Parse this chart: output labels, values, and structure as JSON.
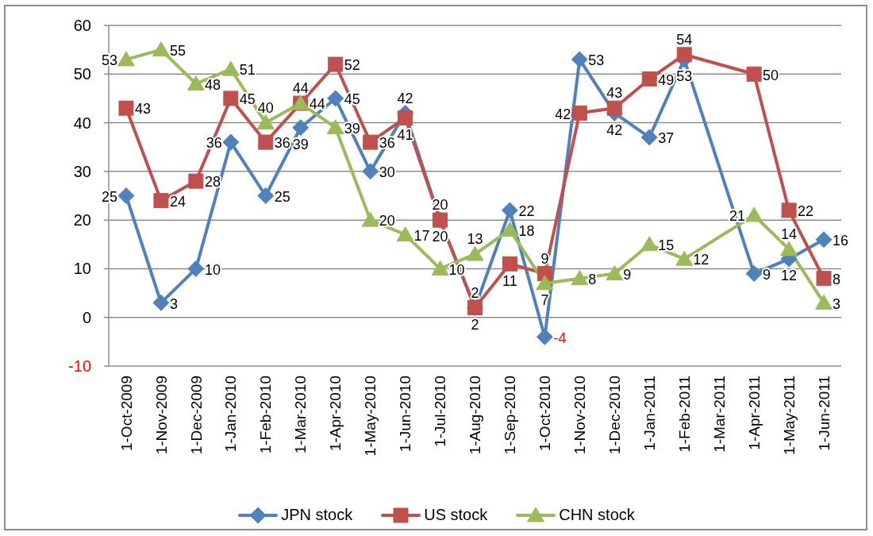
{
  "chart_data": {
    "type": "line",
    "categories": [
      "1-Oct-2009",
      "1-Nov-2009",
      "1-Dec-2009",
      "1-Jan-2010",
      "1-Feb-2010",
      "1-Mar-2010",
      "1-Apr-2010",
      "1-May-2010",
      "1-Jun-2010",
      "1-Jul-2010",
      "1-Aug-2010",
      "1-Sep-2010",
      "1-Oct-2010",
      "1-Nov-2010",
      "1-Dec-2010",
      "1-Jan-2011",
      "1-Feb-2011",
      "1-Mar-2011",
      "1-Apr-2011",
      "1-May-2011",
      "1-Jun-2011"
    ],
    "series": [
      {
        "name": "JPN stock",
        "color": "#4f81bd",
        "marker": "diamond",
        "values": [
          25,
          3,
          10,
          36,
          25,
          39,
          45,
          30,
          42,
          20,
          2,
          22,
          -4,
          53,
          42,
          37,
          53,
          null,
          9,
          12,
          16
        ]
      },
      {
        "name": "US stock",
        "color": "#c0504d",
        "marker": "square",
        "values": [
          43,
          24,
          28,
          45,
          36,
          44,
          52,
          36,
          41,
          20,
          2,
          11,
          9,
          42,
          43,
          49,
          54,
          null,
          50,
          22,
          8
        ]
      },
      {
        "name": "CHN stock",
        "color": "#9bbb59",
        "marker": "triangle",
        "values": [
          53,
          55,
          48,
          51,
          40,
          44,
          39,
          20,
          17,
          10,
          13,
          18,
          7,
          8,
          9,
          15,
          12,
          null,
          21,
          14,
          3
        ]
      }
    ],
    "ylim": [
      -10,
      60
    ],
    "yticks": [
      -10,
      0,
      10,
      20,
      30,
      40,
      50,
      60
    ],
    "grid": "y",
    "legend": "bottom",
    "data_labels": true
  }
}
